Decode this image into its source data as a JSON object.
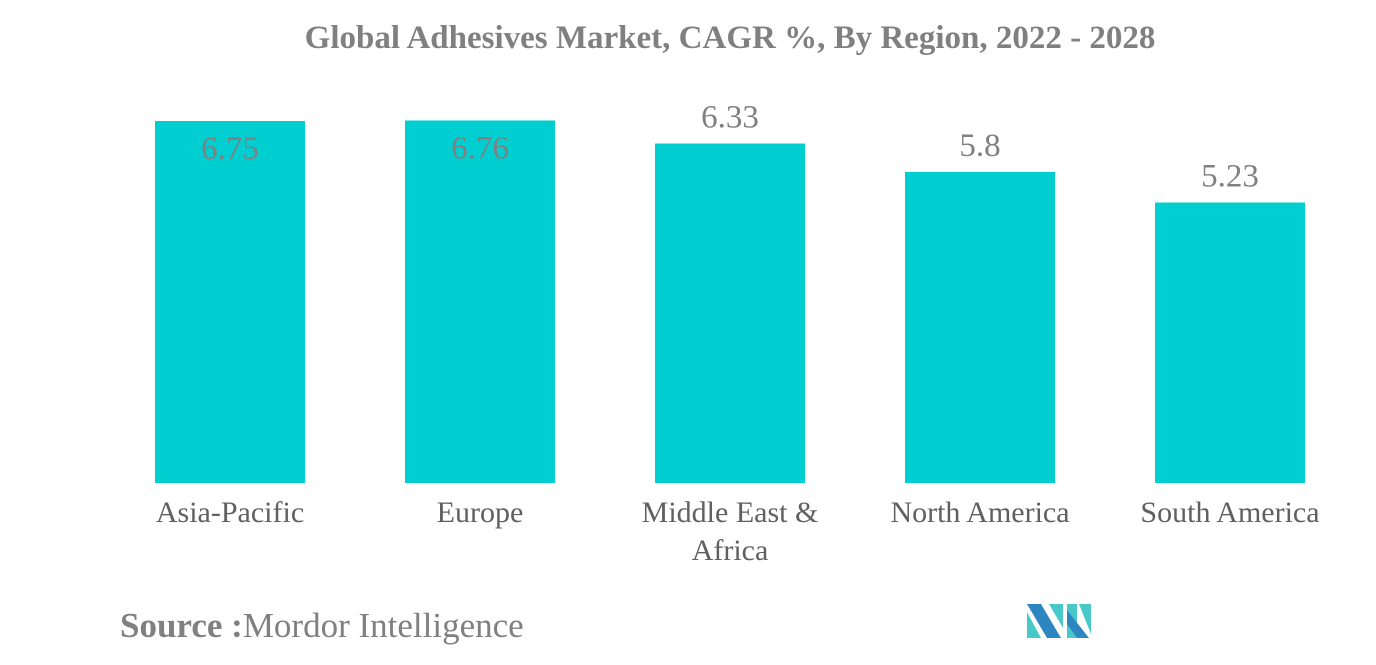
{
  "chart_data": {
    "type": "bar",
    "title": "Global Adhesives Market, CAGR %, By Region, 2022 - 2028",
    "categories": [
      "Asia-Pacific",
      "Europe",
      "Middle East & Africa",
      "North America",
      "South America"
    ],
    "values": [
      6.75,
      6.76,
      6.33,
      5.8,
      5.23
    ],
    "data_labels": [
      "6.75",
      "6.76",
      "6.33",
      "5.8",
      "5.23"
    ],
    "xlabel": "",
    "ylabel": "",
    "ylim": [
      0,
      7
    ],
    "grid": false,
    "bar_color": "#00CED1",
    "label_color": "#808080"
  },
  "source": {
    "label": "Source :",
    "value": "Mordor Intelligence"
  },
  "logo": {
    "colors": [
      "#2E86C1",
      "#48C9C9"
    ]
  }
}
